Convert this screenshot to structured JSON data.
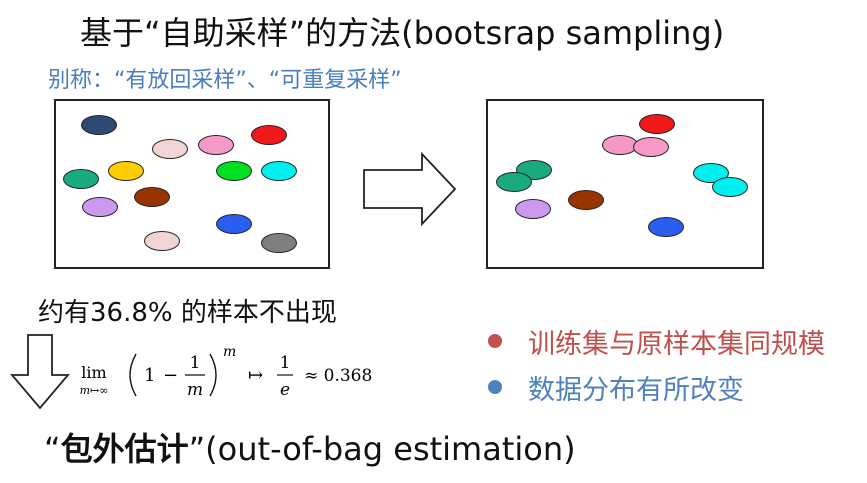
{
  "title": "基于“自助采样”的方法(bootsrap sampling)",
  "subtitle": "别称：“有放回采样”、“可重复采样”",
  "note": "约有36.8% 的样本不出现",
  "formula": {
    "lim": "lim",
    "lim_sub": "m↦∞",
    "one": "1",
    "minus": "−",
    "numer": "1",
    "denom": "m",
    "exponent": "m",
    "mapsto": "↦",
    "frac2_numer": "1",
    "frac2_denom": "e",
    "approx": "≈ 0.368"
  },
  "bullets": [
    {
      "text": "训练集与原样本集同规模",
      "color": "#c0504d"
    },
    {
      "text": "数据分布有所改变",
      "color": "#4f81bd"
    }
  ],
  "oob": {
    "open_quote": "“",
    "bold": "包外估计",
    "close_quote": "”",
    "rest": "(out-of-bag estimation)"
  },
  "colors": {
    "subtitle": "#4a7ec0",
    "bullet1_text": "#c0504d",
    "bullet2_text": "#4f81bd"
  },
  "left_balls": [
    {
      "name": "ball-navy",
      "color": "#2e4a72"
    },
    {
      "name": "ball-pink-light",
      "color": "#f2d4d4"
    },
    {
      "name": "ball-pink",
      "color": "#f799c6"
    },
    {
      "name": "ball-red",
      "color": "#f01818"
    },
    {
      "name": "ball-teal",
      "color": "#1aaa80"
    },
    {
      "name": "ball-yellow",
      "color": "#ffcc00"
    },
    {
      "name": "ball-green",
      "color": "#00e020"
    },
    {
      "name": "ball-cyan",
      "color": "#00f0f0"
    },
    {
      "name": "ball-lavender",
      "color": "#cc99f0"
    },
    {
      "name": "ball-brown",
      "color": "#993300"
    },
    {
      "name": "ball-blue",
      "color": "#2a5ef0"
    },
    {
      "name": "ball-pink-light-2",
      "color": "#f2d4d4"
    },
    {
      "name": "ball-gray",
      "color": "#7f7f7f"
    }
  ],
  "right_balls": [
    {
      "name": "ball-red",
      "color": "#f01818"
    },
    {
      "name": "ball-pink",
      "color": "#f799c6"
    },
    {
      "name": "ball-pink-2",
      "color": "#f799c6"
    },
    {
      "name": "ball-teal",
      "color": "#1aaa80"
    },
    {
      "name": "ball-teal-2",
      "color": "#1aaa80"
    },
    {
      "name": "ball-cyan",
      "color": "#00f0f0"
    },
    {
      "name": "ball-cyan-2",
      "color": "#00f0f0"
    },
    {
      "name": "ball-brown",
      "color": "#993300"
    },
    {
      "name": "ball-lavender",
      "color": "#cc99f0"
    },
    {
      "name": "ball-blue",
      "color": "#2a5ef0"
    }
  ]
}
